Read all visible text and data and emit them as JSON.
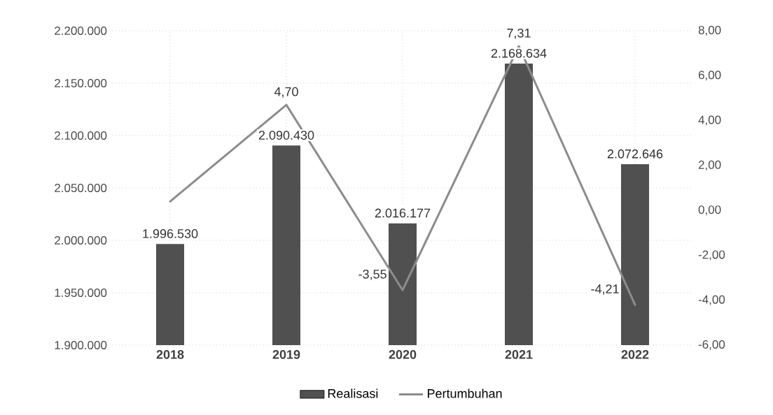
{
  "chart_data": {
    "type": "bar",
    "categories": [
      "2018",
      "2019",
      "2020",
      "2021",
      "2022"
    ],
    "series": [
      {
        "name": "Realisasi",
        "color": "#505050",
        "values": [
          1996530,
          2090430,
          2016177,
          2168634,
          2072646
        ],
        "value_labels": [
          "1.996.530",
          "2.090.430",
          "2.016.177",
          "2.168.634",
          "2.072.646"
        ]
      },
      {
        "name": "Pertumbuhan",
        "type": "line",
        "axis": "y2",
        "color": "#8c8c8c",
        "values": [
          0.4,
          4.7,
          -3.55,
          7.31,
          -4.21
        ],
        "value_labels": [
          null,
          "4,70",
          "-3,55",
          "7,31",
          "-4,21"
        ]
      }
    ],
    "ylim": [
      1900000,
      2200000
    ],
    "yticks": [
      {
        "value": 1900000,
        "label": "1.900.000"
      },
      {
        "value": 1950000,
        "label": "1.950.000"
      },
      {
        "value": 2000000,
        "label": "2.000.000"
      },
      {
        "value": 2050000,
        "label": "2.050.000"
      },
      {
        "value": 2100000,
        "label": "2.100.000"
      },
      {
        "value": 2150000,
        "label": "2.150.000"
      },
      {
        "value": 2200000,
        "label": "2.200.000"
      }
    ],
    "y2lim": [
      -6,
      8
    ],
    "y2ticks": [
      {
        "value": -6,
        "label": "-6,00"
      },
      {
        "value": -4,
        "label": "-4,00"
      },
      {
        "value": -2,
        "label": "-2,00"
      },
      {
        "value": 0,
        "label": "0,00"
      },
      {
        "value": 2,
        "label": "2,00"
      },
      {
        "value": 4,
        "label": "4,00"
      },
      {
        "value": 6,
        "label": "6,00"
      },
      {
        "value": 8,
        "label": "8,00"
      }
    ],
    "grid": true,
    "legend": "bottom",
    "marker": "none",
    "line_style": "solid"
  }
}
